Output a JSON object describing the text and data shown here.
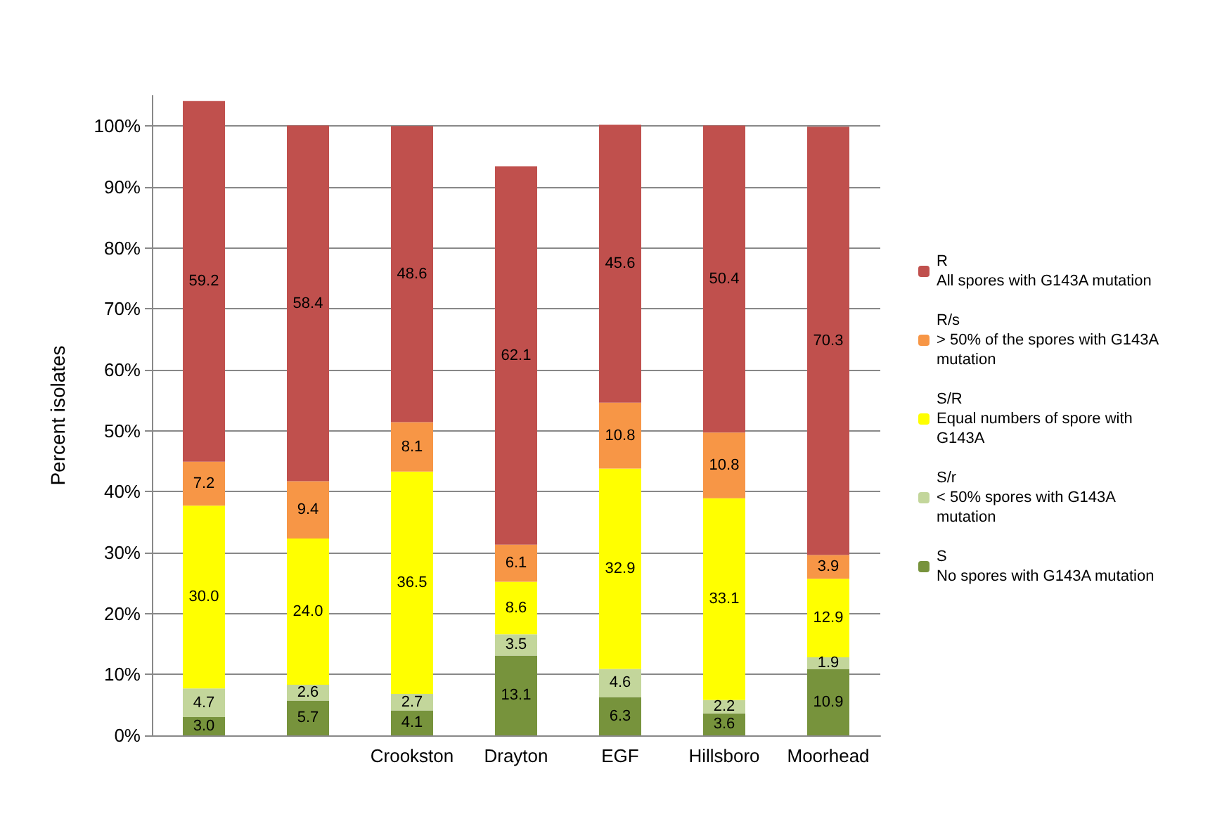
{
  "chart_data": {
    "type": "bar",
    "stacked": true,
    "ylabel": "Percent isolates",
    "categories": [
      null,
      null,
      "Crookston",
      "Drayton",
      "EGF",
      "Hillsboro",
      "Moorhead"
    ],
    "series": [
      {
        "name": "S\nNo spores with G143A mutation",
        "color": "#77933c",
        "values": [
          3.0,
          5.7,
          4.1,
          13.1,
          6.3,
          3.6,
          10.9
        ],
        "value_labels": [
          "3.0",
          "5.7",
          "4.1",
          "13.1",
          "6.3",
          "3.6",
          "10.9"
        ]
      },
      {
        "name": "S/r\n< 50% spores with G143A\nmutation",
        "color": "#c3d69b",
        "values": [
          4.7,
          2.6,
          2.7,
          3.5,
          4.6,
          2.2,
          1.9
        ],
        "value_labels": [
          "4.7",
          "2.6",
          "2.7",
          "3.5",
          "4.6",
          "2.2",
          "1.9"
        ]
      },
      {
        "name": "S/R\nEqual numbers of spore with\nG143A",
        "color": "#ffff00",
        "values": [
          30.0,
          24.0,
          36.5,
          8.6,
          32.9,
          33.1,
          12.9
        ],
        "value_labels": [
          "30.0",
          "24.0",
          "36.5",
          "8.6",
          "32.9",
          "33.1",
          "12.9"
        ]
      },
      {
        "name": "R/s\n> 50% of the spores with G143A\nmutation",
        "color": "#f79646",
        "values": [
          7.2,
          9.4,
          8.1,
          6.1,
          10.8,
          10.8,
          3.9
        ],
        "value_labels": [
          "7.2",
          "9.4",
          "8.1",
          "6.1",
          "10.8",
          "10.8",
          "3.9"
        ]
      },
      {
        "name": "R\nAll spores with G143A mutation",
        "color": "#c0504d",
        "values": [
          59.2,
          58.4,
          48.6,
          62.1,
          45.6,
          50.4,
          70.3
        ],
        "value_labels": [
          "59.2",
          "58.4",
          "48.6",
          "62.1",
          "45.6",
          "50.4",
          "70.3"
        ]
      }
    ],
    "ylim": [
      0,
      105
    ],
    "yticks": [
      {
        "value": 0,
        "label": "0%"
      },
      {
        "value": 10,
        "label": "10%"
      },
      {
        "value": 20,
        "label": "20%"
      },
      {
        "value": 30,
        "label": "30%"
      },
      {
        "value": 40,
        "label": "40%"
      },
      {
        "value": 50,
        "label": "50%"
      },
      {
        "value": 60,
        "label": "60%"
      },
      {
        "value": 70,
        "label": "70%"
      },
      {
        "value": 80,
        "label": "80%"
      },
      {
        "value": 90,
        "label": "90%"
      },
      {
        "value": 100,
        "label": "100%"
      }
    ],
    "grid": true,
    "legend": "right"
  }
}
